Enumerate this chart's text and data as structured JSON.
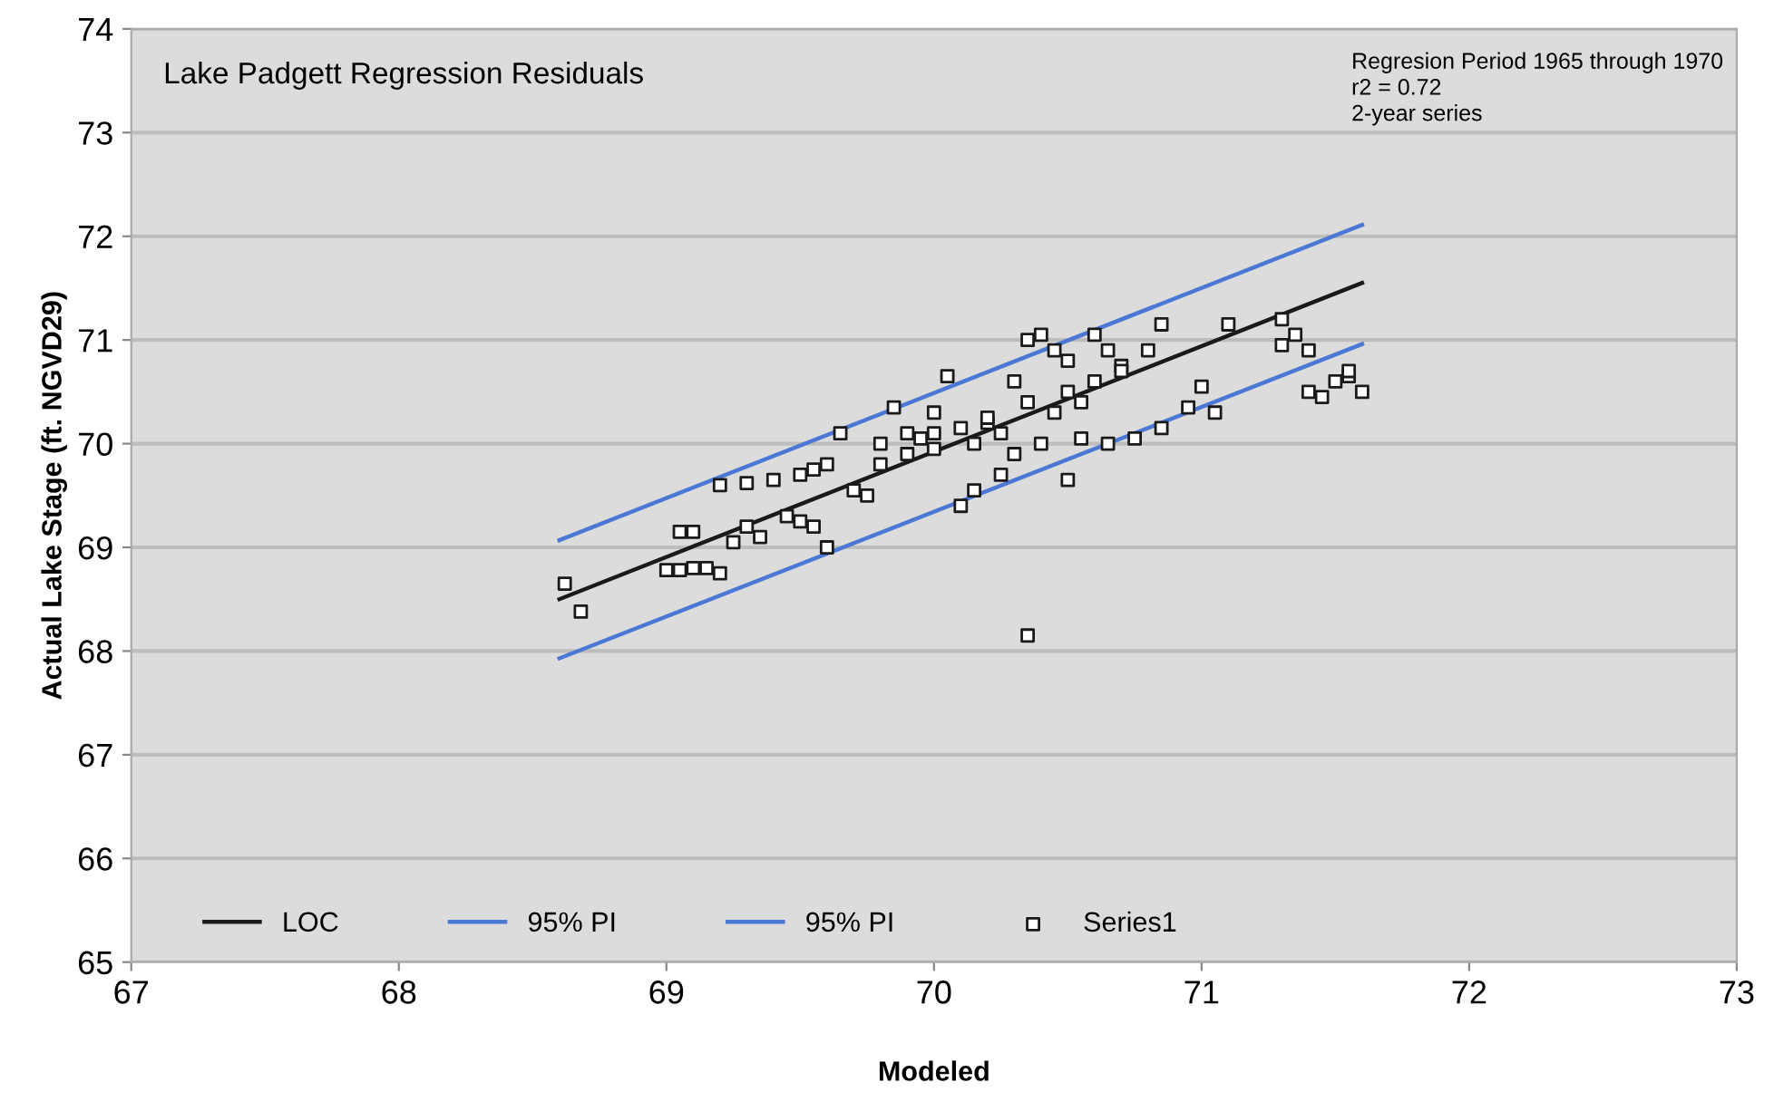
{
  "chart_data": {
    "type": "scatter",
    "title": "Lake Padgett Regression Residuals",
    "xlabel": "Modeled",
    "ylabel": "Actual Lake Stage (ft. NGVD29)",
    "annotations": [
      "Regresion Period 1965 through 1970\nr2 = 0.72\n2-year series"
    ],
    "xlim": [
      67,
      73
    ],
    "xticks": [
      67,
      68,
      69,
      70,
      71,
      72,
      73
    ],
    "ylim": [
      65,
      74
    ],
    "yticks": [
      65,
      66,
      67,
      68,
      69,
      70,
      71,
      72,
      73,
      74
    ],
    "grid": "y",
    "legend": "bottom left",
    "series": [
      {
        "name": "LOC",
        "type": "line",
        "color": "#1a1a1a",
        "x": [
          68.6,
          71.6
        ],
        "values": [
          68.5,
          71.55
        ]
      },
      {
        "name": "95% PI",
        "type": "line",
        "color": "#4a78d4",
        "x": [
          68.6,
          71.6
        ],
        "values": [
          69.07,
          72.11
        ]
      },
      {
        "name": "95% PI",
        "type": "line",
        "color": "#4a78d4",
        "x": [
          68.6,
          71.6
        ],
        "values": [
          67.93,
          70.96
        ]
      },
      {
        "name": "Series1",
        "marker": "square",
        "color": "#1a1a1a",
        "x": [
          68.62,
          68.68,
          69.0,
          69.05,
          69.1,
          69.15,
          69.05,
          69.1,
          69.2,
          69.25,
          69.3,
          69.2,
          69.3,
          69.4,
          69.5,
          69.55,
          69.45,
          69.55,
          69.6,
          69.6,
          69.65,
          69.7,
          69.75,
          69.8,
          69.85,
          69.9,
          69.95,
          70.0,
          70.0,
          70.05,
          70.1,
          70.15,
          70.15,
          70.2,
          70.25,
          70.3,
          70.35,
          70.35,
          70.4,
          70.45,
          70.5,
          70.55,
          70.6,
          70.65,
          70.7,
          70.8,
          70.85,
          70.75,
          70.85,
          70.95,
          71.0,
          71.05,
          71.1,
          71.3,
          71.3,
          71.35,
          71.4,
          71.4,
          71.45,
          71.5,
          71.55,
          71.55,
          71.6,
          70.35,
          70.2,
          70.3,
          70.45,
          70.5,
          70.6,
          70.7,
          70.0,
          69.9,
          69.8,
          70.4,
          70.55,
          70.65,
          69.35,
          69.5,
          70.25,
          70.5,
          70.1
        ],
        "values": [
          68.65,
          68.38,
          68.78,
          68.78,
          68.8,
          68.8,
          69.15,
          69.15,
          68.75,
          69.05,
          69.2,
          69.6,
          69.62,
          69.65,
          69.7,
          69.75,
          69.3,
          69.2,
          69.0,
          69.8,
          70.1,
          69.55,
          69.5,
          70.0,
          70.35,
          69.9,
          70.05,
          69.95,
          70.1,
          70.65,
          70.15,
          70.0,
          69.55,
          70.2,
          70.1,
          69.9,
          70.4,
          71.0,
          71.05,
          70.9,
          70.8,
          70.4,
          71.05,
          70.9,
          70.75,
          70.9,
          71.15,
          70.05,
          70.15,
          70.35,
          70.55,
          70.3,
          71.15,
          71.2,
          70.95,
          71.05,
          70.9,
          70.5,
          70.45,
          70.6,
          70.65,
          70.7,
          70.5,
          68.15,
          70.25,
          70.6,
          70.3,
          70.5,
          70.6,
          70.7,
          70.3,
          70.1,
          69.8,
          70.0,
          70.05,
          70.0,
          69.1,
          69.25,
          69.7,
          69.65,
          69.4
        ]
      }
    ]
  }
}
